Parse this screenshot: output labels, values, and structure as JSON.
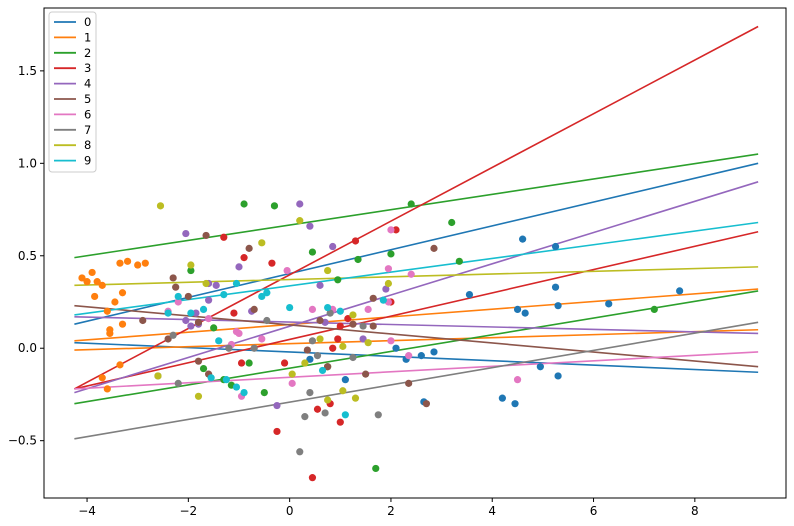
{
  "chart_data": {
    "type": "scatter",
    "title": "",
    "xlabel": "",
    "ylabel": "",
    "xlim": [
      -4.85,
      9.8
    ],
    "ylim": [
      -0.81,
      1.84
    ],
    "grid": false,
    "legend_placement": "top-left",
    "x_ticks": [
      -4,
      -2,
      0,
      2,
      4,
      6,
      8
    ],
    "y_ticks": [
      -0.5,
      0.0,
      0.5,
      1.0,
      1.5
    ],
    "x_tick_labels": [
      "−4",
      "−2",
      "0",
      "2",
      "4",
      "6",
      "8"
    ],
    "y_tick_labels": [
      "−0.5",
      "0.0",
      "0.5",
      "1.0",
      "1.5"
    ],
    "series": [
      {
        "name": "0",
        "color": "#1f77b4",
        "line": [
          [
            -4.25,
            0.13
          ],
          [
            9.25,
            1.0
          ]
        ],
        "line2": [
          [
            -4.25,
            0.03
          ],
          [
            9.25,
            -0.13
          ]
        ],
        "points": [
          [
            4.6,
            0.59
          ],
          [
            5.25,
            0.55
          ],
          [
            7.7,
            0.31
          ],
          [
            6.3,
            0.24
          ],
          [
            5.25,
            0.33
          ],
          [
            5.3,
            0.23
          ],
          [
            4.5,
            0.21
          ],
          [
            4.65,
            0.19
          ],
          [
            3.55,
            0.29
          ],
          [
            2.1,
            0.0
          ],
          [
            2.3,
            -0.06
          ],
          [
            2.6,
            -0.04
          ],
          [
            2.85,
            -0.02
          ],
          [
            1.1,
            -0.17
          ],
          [
            0.4,
            -0.06
          ],
          [
            5.3,
            -0.15
          ],
          [
            4.95,
            -0.1
          ],
          [
            4.2,
            -0.27
          ],
          [
            4.45,
            -0.3
          ],
          [
            2.65,
            -0.29
          ]
        ]
      },
      {
        "name": "1",
        "color": "#ff7f0e",
        "line": [
          [
            -4.25,
            0.04
          ],
          [
            9.25,
            0.32
          ]
        ],
        "line2": [
          [
            -4.25,
            -0.01
          ],
          [
            9.25,
            0.1
          ]
        ],
        "points": [
          [
            -4.1,
            0.38
          ],
          [
            -3.9,
            0.41
          ],
          [
            -3.8,
            0.36
          ],
          [
            -3.7,
            0.34
          ],
          [
            -3.6,
            0.2
          ],
          [
            -3.55,
            0.1
          ],
          [
            -3.55,
            0.08
          ],
          [
            -3.45,
            0.25
          ],
          [
            -3.35,
            0.46
          ],
          [
            -3.3,
            0.3
          ],
          [
            -3.2,
            0.47
          ],
          [
            -3.0,
            0.45
          ],
          [
            -2.85,
            0.46
          ],
          [
            -3.3,
            0.13
          ],
          [
            -3.35,
            -0.09
          ],
          [
            -3.7,
            -0.16
          ],
          [
            -3.6,
            -0.22
          ],
          [
            -4.0,
            0.36
          ],
          [
            -3.85,
            0.28
          ]
        ]
      },
      {
        "name": "2",
        "color": "#2ca02c",
        "line": [
          [
            -4.25,
            0.49
          ],
          [
            9.25,
            1.05
          ]
        ],
        "line2": [
          [
            -4.25,
            -0.3
          ],
          [
            9.25,
            0.31
          ]
        ],
        "points": [
          [
            -0.9,
            0.78
          ],
          [
            -0.3,
            0.77
          ],
          [
            2.4,
            0.78
          ],
          [
            3.2,
            0.68
          ],
          [
            3.35,
            0.47
          ],
          [
            2.0,
            0.51
          ],
          [
            1.35,
            0.48
          ],
          [
            0.45,
            0.52
          ],
          [
            1.7,
            -0.65
          ],
          [
            0.95,
            0.37
          ],
          [
            -0.5,
            -0.24
          ],
          [
            -0.8,
            -0.08
          ],
          [
            -1.5,
            0.11
          ],
          [
            -1.15,
            -0.2
          ],
          [
            -1.3,
            -0.17
          ],
          [
            -1.7,
            -0.11
          ],
          [
            -1.95,
            0.42
          ],
          [
            7.2,
            0.21
          ],
          [
            0.75,
            -0.1
          ]
        ]
      },
      {
        "name": "3",
        "color": "#d62728",
        "line": [
          [
            -4.25,
            -0.22
          ],
          [
            9.25,
            0.63
          ]
        ],
        "line2": [
          [
            -4.25,
            -0.22
          ],
          [
            9.25,
            1.74
          ]
        ],
        "points": [
          [
            2.1,
            0.64
          ],
          [
            0.45,
            -0.7
          ],
          [
            0.55,
            -0.33
          ],
          [
            0.8,
            -0.3
          ],
          [
            1.0,
            -0.4
          ],
          [
            -0.25,
            -0.45
          ],
          [
            -1.3,
            0.6
          ],
          [
            -0.9,
            0.49
          ],
          [
            -0.35,
            0.46
          ],
          [
            -1.1,
            0.19
          ],
          [
            -0.95,
            -0.08
          ],
          [
            1.3,
            0.58
          ],
          [
            0.85,
            0.0
          ],
          [
            1.0,
            0.12
          ],
          [
            -0.1,
            -0.08
          ],
          [
            0.95,
            0.05
          ],
          [
            1.15,
            0.16
          ],
          [
            2.0,
            0.25
          ]
        ]
      },
      {
        "name": "4",
        "color": "#9467bd",
        "line": [
          [
            -4.25,
            -0.24
          ],
          [
            9.25,
            0.9
          ]
        ],
        "line2": [
          [
            -4.25,
            0.17
          ],
          [
            9.25,
            0.08
          ]
        ],
        "points": [
          [
            -2.05,
            0.62
          ],
          [
            0.2,
            0.78
          ],
          [
            -1.6,
            0.35
          ],
          [
            -1.45,
            0.34
          ],
          [
            -1.6,
            0.26
          ],
          [
            -1.0,
            0.44
          ],
          [
            -1.8,
            0.13
          ],
          [
            -1.95,
            0.12
          ],
          [
            -2.05,
            0.15
          ],
          [
            -1.85,
            0.19
          ],
          [
            0.4,
            0.66
          ],
          [
            -0.25,
            -0.31
          ],
          [
            0.85,
            0.55
          ],
          [
            0.6,
            0.34
          ],
          [
            1.45,
            0.05
          ],
          [
            0.7,
            0.14
          ],
          [
            -0.75,
            0.2
          ],
          [
            1.9,
            0.32
          ]
        ]
      },
      {
        "name": "5",
        "color": "#8c564b",
        "line": [
          [
            -4.25,
            0.23
          ],
          [
            9.25,
            -0.1
          ]
        ],
        "points": [
          [
            -1.65,
            0.61
          ],
          [
            -0.8,
            0.54
          ],
          [
            -2.3,
            0.38
          ],
          [
            -2.25,
            0.33
          ],
          [
            -2.0,
            0.28
          ],
          [
            -1.8,
            0.14
          ],
          [
            -1.6,
            -0.14
          ],
          [
            -1.8,
            -0.07
          ],
          [
            -0.7,
            0.21
          ],
          [
            0.35,
            -0.01
          ],
          [
            0.6,
            0.15
          ],
          [
            0.75,
            -0.1
          ],
          [
            1.25,
            0.13
          ],
          [
            1.5,
            -0.14
          ],
          [
            1.65,
            0.27
          ],
          [
            2.35,
            -0.19
          ],
          [
            2.7,
            -0.3
          ],
          [
            2.85,
            0.54
          ],
          [
            -2.4,
            0.05
          ],
          [
            -2.9,
            0.15
          ],
          [
            1.65,
            0.12
          ]
        ]
      },
      {
        "name": "6",
        "color": "#e377c2",
        "line": [
          [
            -4.25,
            -0.22
          ],
          [
            9.25,
            -0.02
          ]
        ],
        "points": [
          [
            2.0,
            0.64
          ],
          [
            1.95,
            0.43
          ],
          [
            2.4,
            0.4
          ],
          [
            1.55,
            0.21
          ],
          [
            2.0,
            0.04
          ],
          [
            2.35,
            -0.04
          ],
          [
            0.85,
            0.21
          ],
          [
            0.45,
            0.21
          ],
          [
            -0.05,
            0.42
          ],
          [
            -1.05,
            0.09
          ],
          [
            -1.15,
            0.02
          ],
          [
            -0.95,
            -0.26
          ],
          [
            0.05,
            -0.19
          ],
          [
            4.5,
            -0.17
          ],
          [
            -2.4,
            0.2
          ],
          [
            -2.2,
            0.25
          ],
          [
            -1.6,
            0.16
          ],
          [
            -1.0,
            0.08
          ],
          [
            -0.55,
            0.05
          ],
          [
            1.95,
            0.25
          ]
        ]
      },
      {
        "name": "7",
        "color": "#7f7f7f",
        "line": [
          [
            -4.25,
            -0.49
          ],
          [
            9.25,
            0.14
          ]
        ],
        "points": [
          [
            0.2,
            -0.56
          ],
          [
            0.3,
            -0.37
          ],
          [
            0.4,
            -0.24
          ],
          [
            0.7,
            -0.35
          ],
          [
            1.75,
            -0.36
          ],
          [
            -2.2,
            -0.19
          ],
          [
            -2.3,
            0.07
          ],
          [
            -2.6,
            -0.15
          ],
          [
            -1.2,
            0.0
          ],
          [
            -0.7,
            0.0
          ],
          [
            -0.45,
            0.15
          ],
          [
            0.8,
            0.19
          ],
          [
            1.25,
            -0.05
          ],
          [
            1.45,
            0.12
          ],
          [
            0.45,
            0.04
          ],
          [
            0.55,
            -0.04
          ]
        ]
      },
      {
        "name": "8",
        "color": "#bcbd22",
        "line": [
          [
            -4.25,
            0.34
          ],
          [
            9.25,
            0.44
          ]
        ],
        "points": [
          [
            -2.55,
            0.77
          ],
          [
            0.2,
            0.69
          ],
          [
            -0.55,
            0.57
          ],
          [
            -1.95,
            0.45
          ],
          [
            -2.6,
            -0.15
          ],
          [
            -1.8,
            -0.26
          ],
          [
            0.75,
            0.42
          ],
          [
            1.25,
            0.18
          ],
          [
            1.95,
            0.35
          ],
          [
            -1.65,
            0.35
          ],
          [
            0.6,
            0.05
          ],
          [
            0.3,
            -0.08
          ],
          [
            0.75,
            -0.28
          ],
          [
            1.3,
            -0.27
          ],
          [
            1.05,
            0.01
          ],
          [
            1.05,
            -0.23
          ],
          [
            1.55,
            0.03
          ],
          [
            0.05,
            -0.14
          ]
        ]
      },
      {
        "name": "9",
        "color": "#17becf",
        "line": [
          [
            -4.25,
            0.18
          ],
          [
            9.25,
            0.68
          ]
        ],
        "points": [
          [
            -2.2,
            0.28
          ],
          [
            -1.95,
            0.19
          ],
          [
            -2.4,
            0.19
          ],
          [
            -1.7,
            0.21
          ],
          [
            -1.4,
            0.04
          ],
          [
            -1.05,
            0.35
          ],
          [
            -1.55,
            -0.16
          ],
          [
            -1.25,
            -0.17
          ],
          [
            -1.05,
            -0.21
          ],
          [
            -0.55,
            0.28
          ],
          [
            -0.45,
            0.3
          ],
          [
            0.0,
            0.22
          ],
          [
            0.65,
            -0.12
          ],
          [
            0.75,
            0.22
          ],
          [
            1.0,
            0.2
          ],
          [
            1.1,
            -0.36
          ],
          [
            1.85,
            0.26
          ],
          [
            -0.9,
            -0.24
          ],
          [
            -1.3,
            0.29
          ]
        ]
      }
    ]
  }
}
